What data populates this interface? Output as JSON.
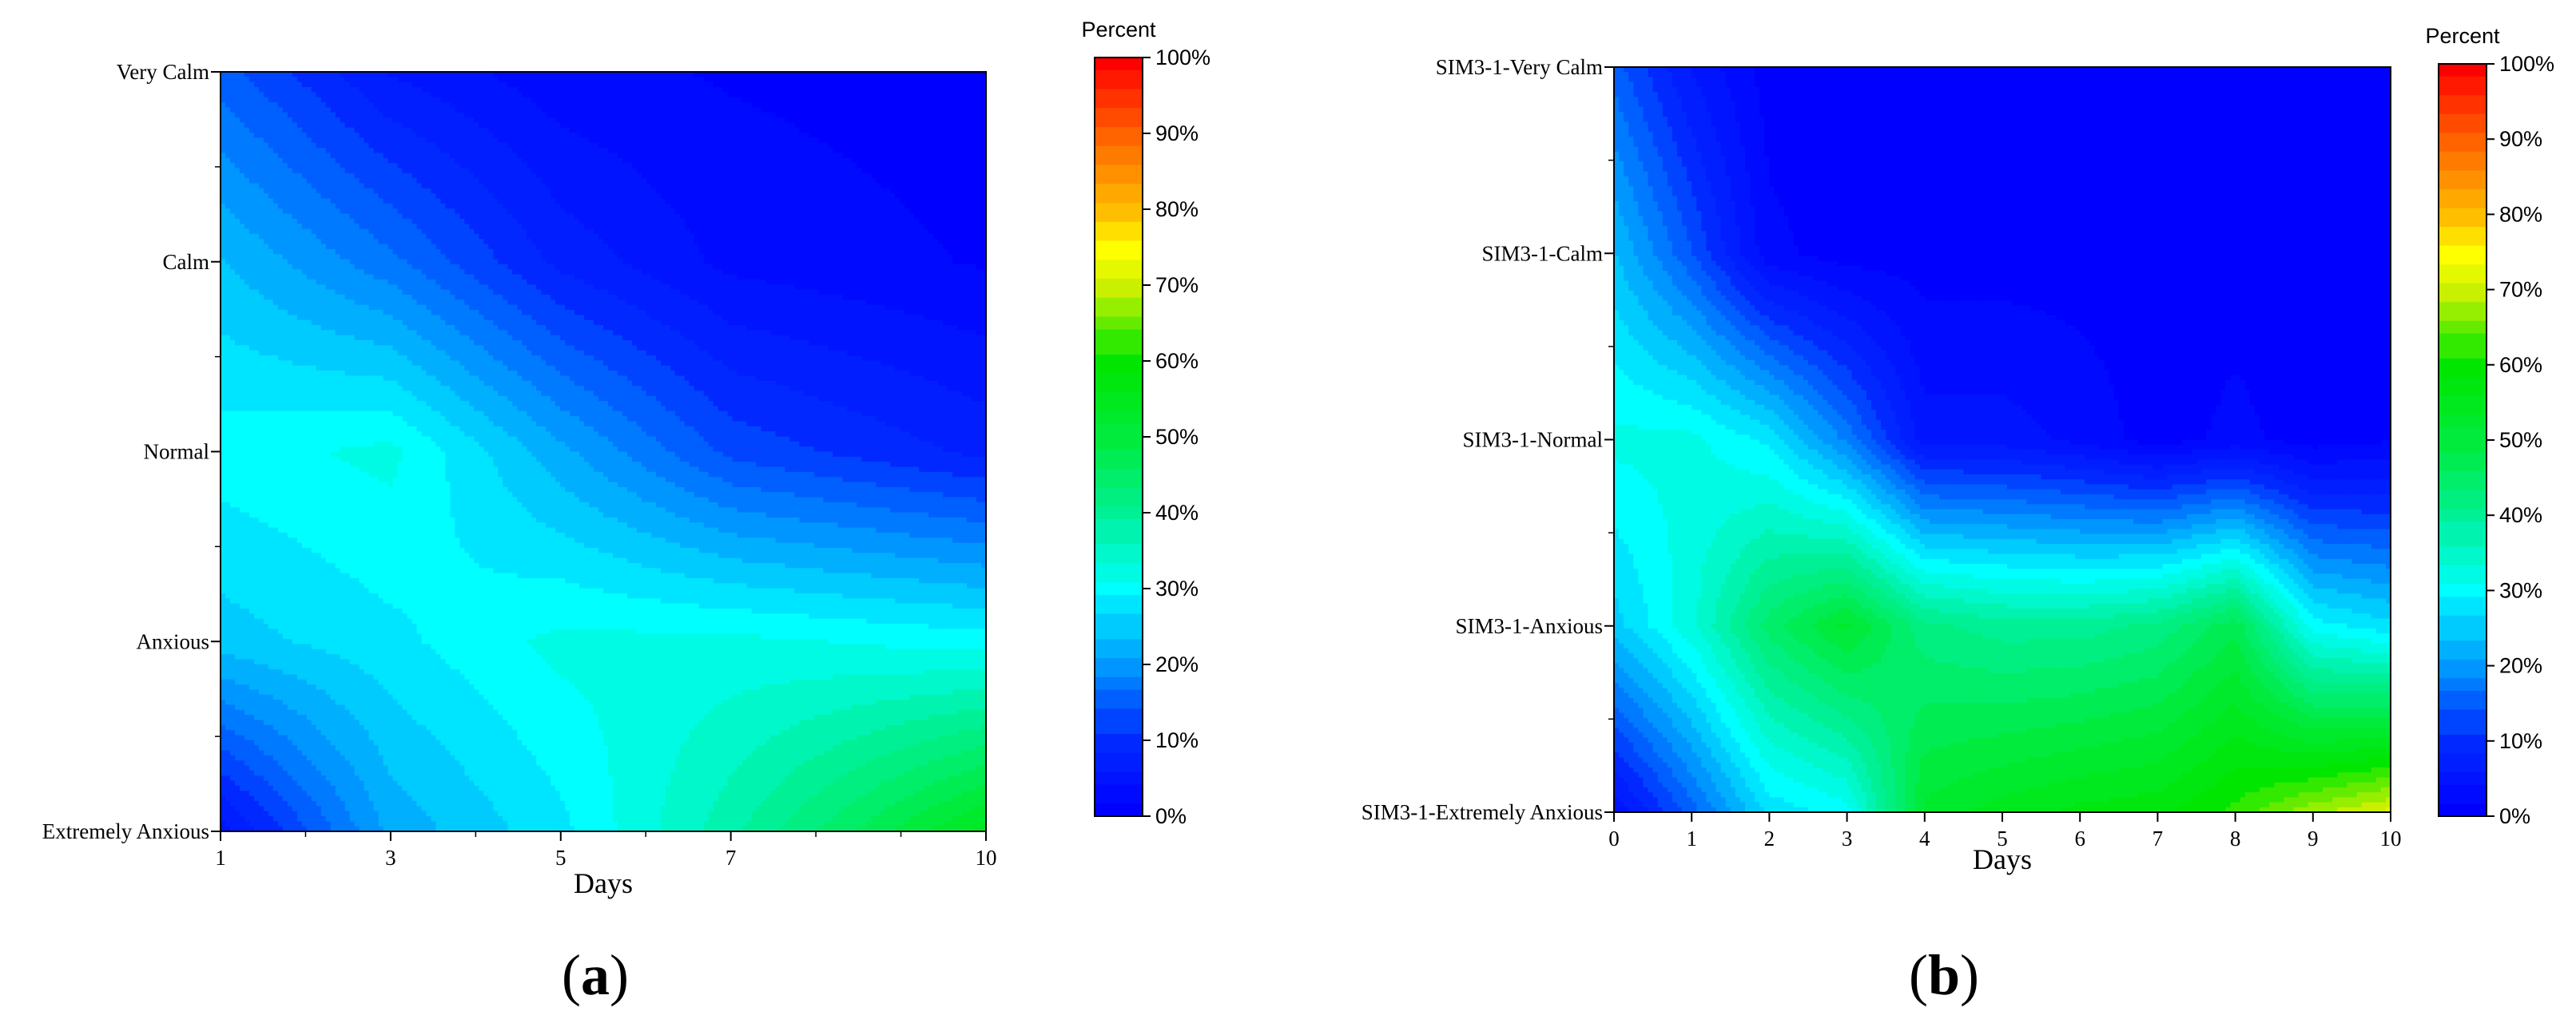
{
  "chart_data": [
    {
      "type": "heatmap",
      "panel_label": {
        "open": "(",
        "letter": "a",
        "close": ")"
      },
      "xlabel": "Days",
      "x_ticks": [
        "1",
        "3",
        "5",
        "7",
        "10"
      ],
      "x_values": [
        1,
        3,
        5,
        7,
        10
      ],
      "xlim": [
        1,
        10
      ],
      "y_categories": [
        "Extremely Anxious",
        "Anxious",
        "Normal",
        "Calm",
        "Very Calm"
      ],
      "colorbar": {
        "title": "Percent",
        "ticks": [
          "0%",
          "10%",
          "20%",
          "30%",
          "40%",
          "50%",
          "60%",
          "70%",
          "80%",
          "90%",
          "100%"
        ],
        "range": [
          0,
          100
        ]
      },
      "values_percent": [
        [
          5,
          22,
          28,
          38,
          55
        ],
        [
          25,
          28,
          32,
          32,
          30
        ],
        [
          30,
          32,
          22,
          13,
          8
        ],
        [
          24,
          17,
          8,
          3,
          1
        ],
        [
          15,
          6,
          2,
          1,
          0
        ]
      ]
    },
    {
      "type": "heatmap",
      "panel_label": {
        "open": "(",
        "letter": "b",
        "close": ")"
      },
      "xlabel": "Days",
      "x_ticks": [
        "0",
        "1",
        "2",
        "3",
        "4",
        "5",
        "6",
        "7",
        "8",
        "9",
        "10"
      ],
      "x_values": [
        0,
        1,
        2,
        3,
        4,
        5,
        6,
        7,
        8,
        9,
        10
      ],
      "xlim": [
        0,
        10
      ],
      "y_categories": [
        "SIM3-1-Extremely Anxious",
        "SIM3-1-Anxious",
        "SIM3-1-Normal",
        "SIM3-1-Calm",
        "SIM3-1-Very Calm"
      ],
      "colorbar": {
        "title": "Percent",
        "ticks": [
          "0%",
          "10%",
          "20%",
          "30%",
          "40%",
          "50%",
          "60%",
          "70%",
          "80%",
          "90%",
          "100%"
        ],
        "range": [
          0,
          100
        ]
      },
      "values_percent": [
        [
          4,
          15,
          27,
          30,
          52,
          55,
          57,
          58,
          62,
          68,
          72
        ],
        [
          25,
          33,
          45,
          52,
          42,
          40,
          40,
          42,
          48,
          30,
          27
        ],
        [
          32,
          32,
          28,
          18,
          5,
          5,
          3,
          0,
          2,
          0,
          1
        ],
        [
          24,
          14,
          2,
          0,
          0,
          0,
          0,
          0,
          0,
          0,
          0
        ],
        [
          15,
          6,
          0,
          0,
          0,
          0,
          0,
          0,
          0,
          0,
          0
        ]
      ]
    }
  ]
}
